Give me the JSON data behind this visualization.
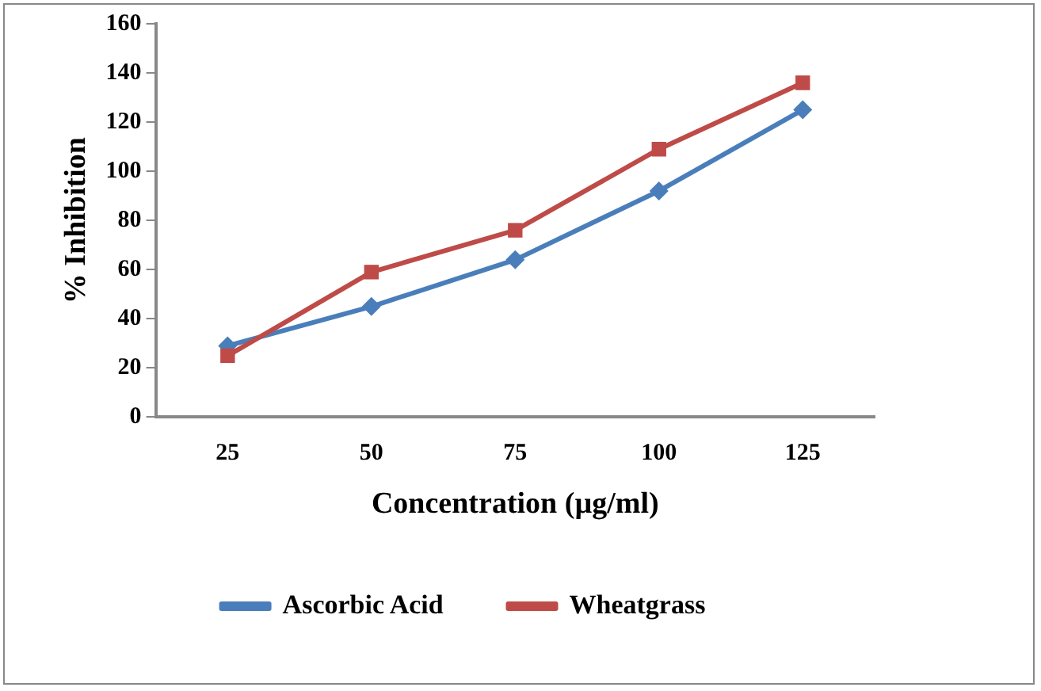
{
  "chart_data": {
    "type": "line",
    "xlabel": "Concentration (µg/ml)",
    "ylabel": "% Inhibition",
    "categories": [
      "25",
      "50",
      "75",
      "100",
      "125"
    ],
    "series": [
      {
        "name": "Ascorbic Acid",
        "color": "#4a7ebb",
        "marker": "diamond",
        "values": [
          29,
          45,
          64,
          92,
          125
        ]
      },
      {
        "name": "Wheatgrass",
        "color": "#be4b48",
        "marker": "square",
        "values": [
          25,
          59,
          76,
          109,
          136
        ]
      }
    ],
    "ylim": [
      0,
      160
    ],
    "yticks": [
      0,
      20,
      40,
      60,
      80,
      100,
      120,
      140,
      160
    ],
    "grid": false,
    "legend": "bottom",
    "line_style": "solid"
  }
}
